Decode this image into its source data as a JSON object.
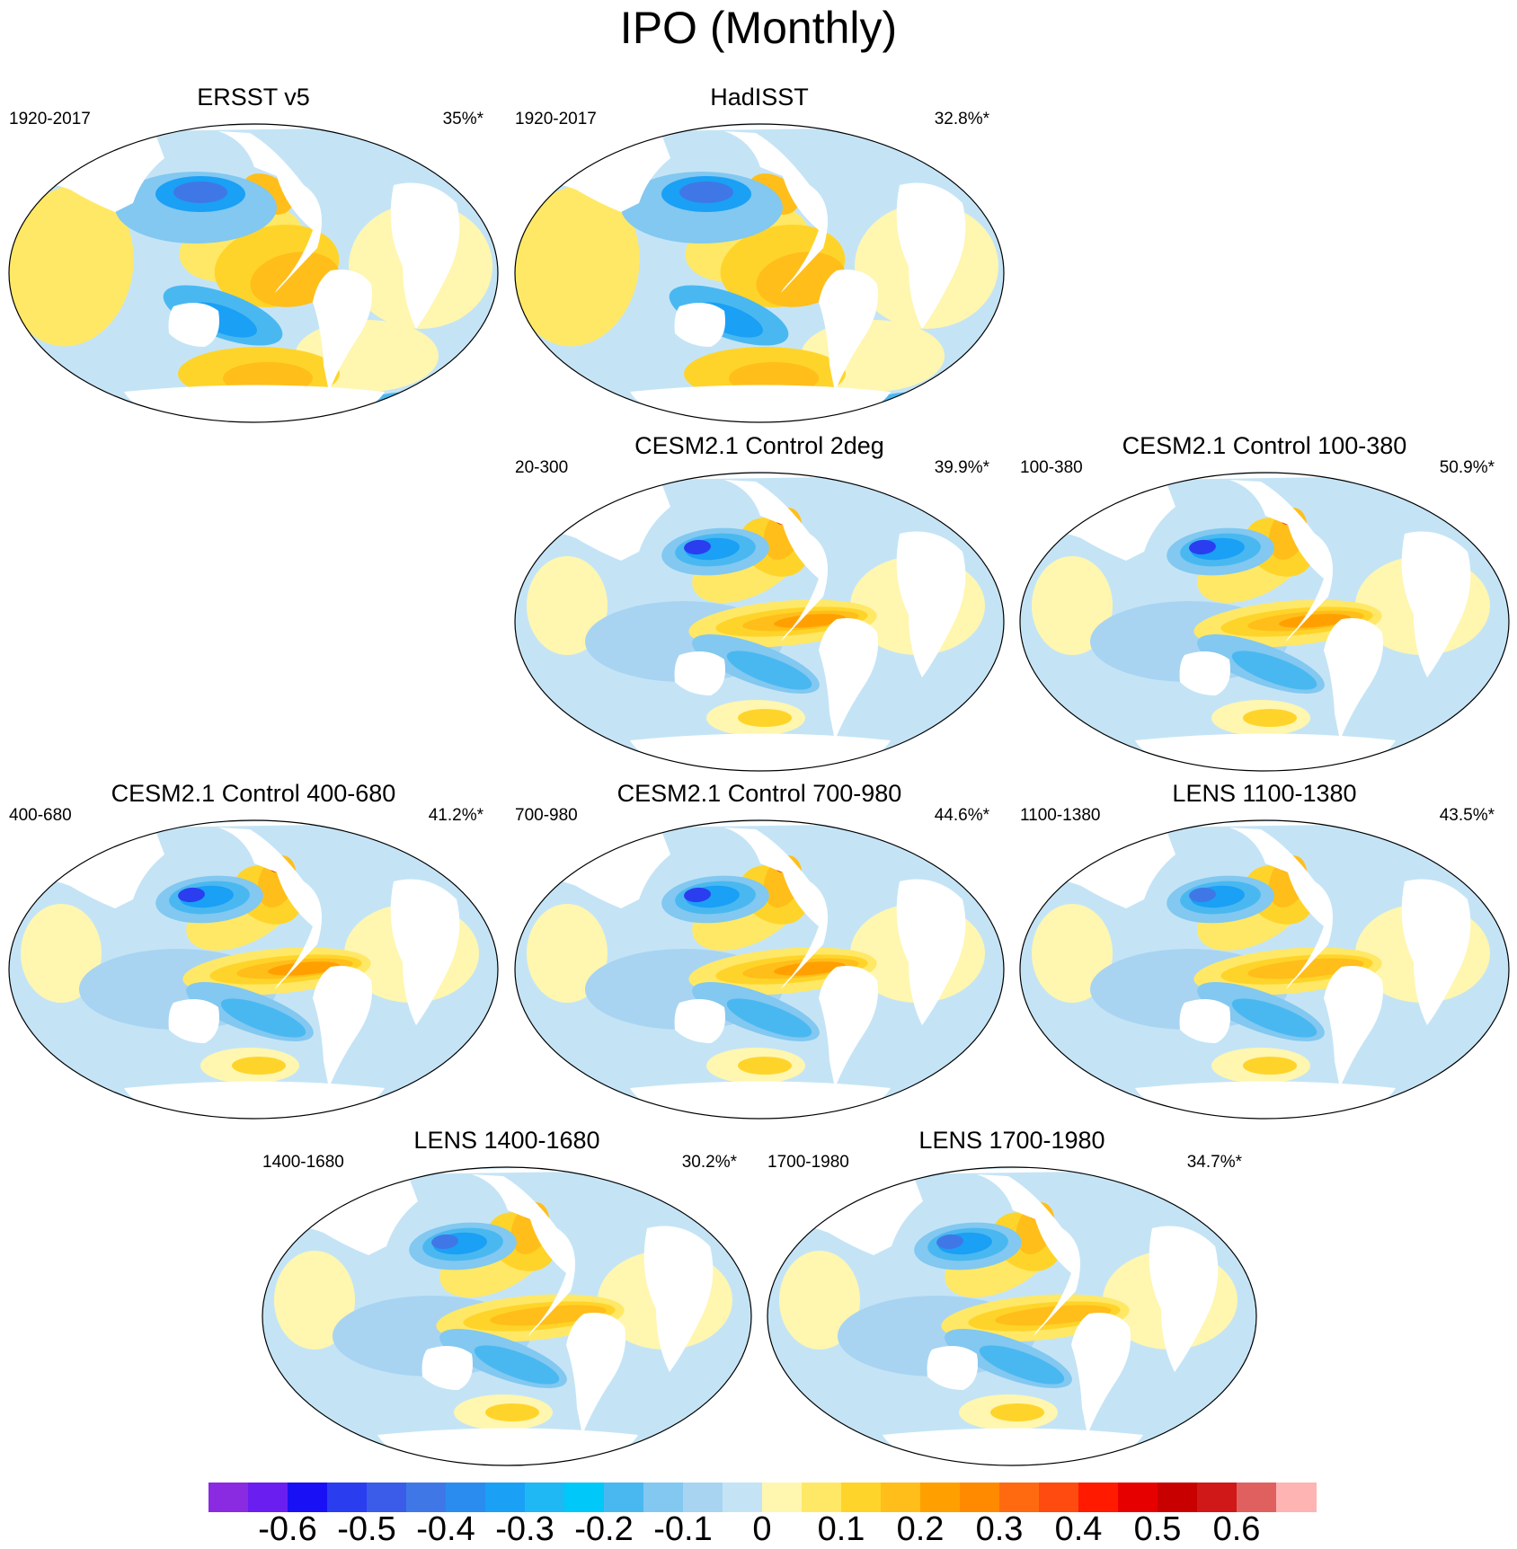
{
  "title": "IPO (Monthly)",
  "panels": [
    {
      "id": "ersst",
      "title": "ERSST v5",
      "period": "1920-2017",
      "variance": "35%*",
      "pattern": "obs1"
    },
    {
      "id": "hadisst",
      "title": "HadISST",
      "period": "1920-2017",
      "variance": "32.8%*",
      "pattern": "obs2"
    },
    {
      "id": "cesm2deg",
      "title": "CESM2.1 Control 2deg",
      "period": "20-300",
      "variance": "39.9%*",
      "pattern": "model"
    },
    {
      "id": "cesm100",
      "title": "CESM2.1 Control 100-380",
      "period": "100-380",
      "variance": "50.9%*",
      "pattern": "model"
    },
    {
      "id": "cesm400",
      "title": "CESM2.1 Control 400-680",
      "period": "400-680",
      "variance": "41.2%*",
      "pattern": "model"
    },
    {
      "id": "cesm700",
      "title": "CESM2.1 Control 700-980",
      "period": "700-980",
      "variance": "44.6%*",
      "pattern": "model"
    },
    {
      "id": "lens1100",
      "title": "LENS 1100-1380",
      "period": "1100-1380",
      "variance": "43.5%*",
      "pattern": "lens"
    },
    {
      "id": "lens1400",
      "title": "LENS 1400-1680",
      "period": "1400-1680",
      "variance": "30.2%*",
      "pattern": "lens"
    },
    {
      "id": "lens1700",
      "title": "LENS 1700-1980",
      "period": "1700-1980",
      "variance": "34.7%*",
      "pattern": "lens"
    }
  ],
  "colorbar": {
    "colors": [
      "#8a2be2",
      "#6a1ff0",
      "#1a10f5",
      "#2a3ef0",
      "#3a5ce8",
      "#3f78e6",
      "#2b8cf0",
      "#1aa0f5",
      "#1fb8f5",
      "#00c8f8",
      "#4ab8f0",
      "#82c8f0",
      "#a8d4f2",
      "#c4e4f6",
      "#fff6b0",
      "#ffe866",
      "#ffd42a",
      "#ffbe1a",
      "#ffa000",
      "#ff8a00",
      "#ff6a10",
      "#ff4a10",
      "#ff1a00",
      "#e60000",
      "#c80000",
      "#d01818",
      "#e06060",
      "#ffb4b4"
    ],
    "labels": [
      "-0.6",
      "-0.5",
      "-0.4",
      "-0.3",
      "-0.2",
      "-0.1",
      "0",
      "0.1",
      "0.2",
      "0.3",
      "0.4",
      "0.5",
      "0.6"
    ]
  }
}
